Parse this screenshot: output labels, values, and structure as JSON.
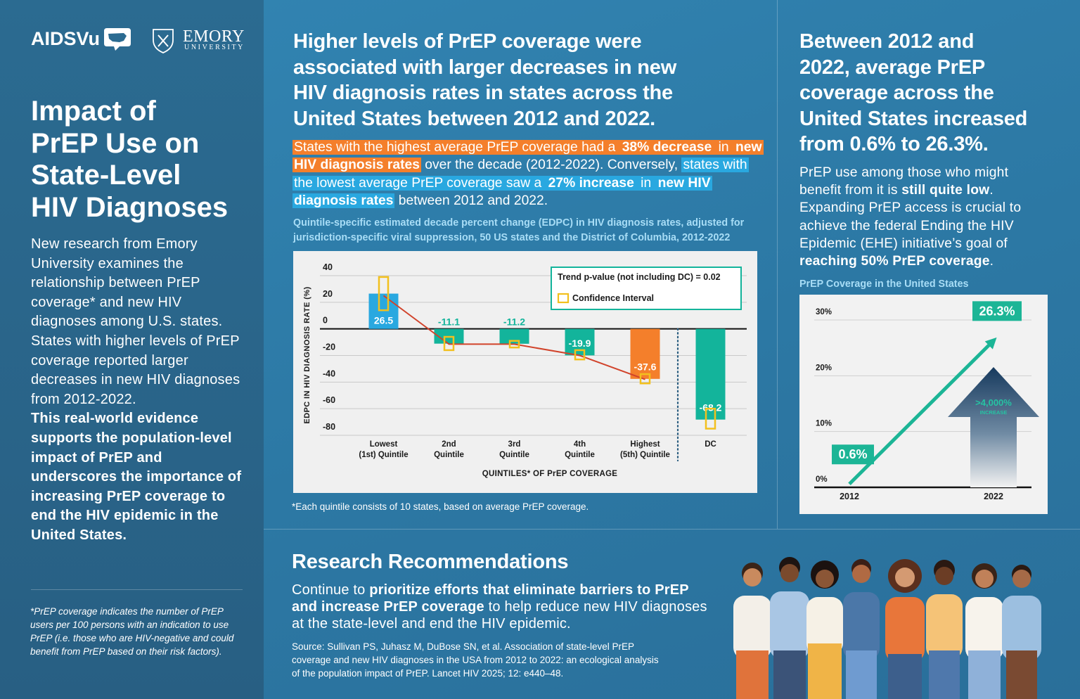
{
  "logos": {
    "aidsvu": "AIDSVu",
    "emory": "EMORY",
    "university": "UNIVERSITY"
  },
  "left": {
    "title": [
      "Impact of",
      "PrEP Use on",
      "State-Level",
      "HIV Diagnoses"
    ],
    "body": "New research from Emory University examines the relationship between PrEP coverage* and new HIV diagnoses among U.S. states. States with higher levels of PrEP coverage reported larger decreases in new HIV diagnoses from 2012-2022.",
    "body_bold": "This real-world evidence supports the population-level impact of PrEP and underscores the importance of increasing PrEP coverage to end the HIV epidemic in the United States.",
    "footnote": "*PrEP coverage indicates the number of PrEP users per 100 persons with an indication to use PrEP (i.e. those who are HIV-negative and could benefit from PrEP based on their risk factors)."
  },
  "middle": {
    "headline": [
      "Higher levels of PrEP coverage were",
      "associated with larger decreases in new",
      "HIV diagnosis rates in states across the",
      "United States between 2012 and 2022."
    ],
    "summary": [
      "States with the highest average PrEP coverage had a ",
      "38% decrease",
      " in ",
      "new HIV diagnosis rates",
      " over the decade (2012-2022). Conversely, ",
      "states with the lowest average PrEP coverage saw a ",
      "27% increase",
      " in ",
      "new HIV diagnosis rates",
      " between 2012 and 2022."
    ]
  },
  "right": {
    "headline": [
      "Between 2012 and",
      "2022, average PrEP",
      "coverage across the",
      "United States increased",
      "from 0.6% to 26.3%."
    ],
    "paragraph": [
      "PrEP use among those who might benefit from it is ",
      "still quite low",
      ". Expanding PrEP access is crucial to achieve the federal Ending the HIV Epidemic (EHE) initiative’s goal of ",
      "reaching 50% PrEP coverage",
      "."
    ]
  },
  "recommendations": {
    "title": "Research Recommendations",
    "paragraph": [
      "Continue to ",
      "prioritize efforts that eliminate barriers to PrEP and increase PrEP coverage",
      " to help reduce new HIV diagnoses at the state-level and end the HIV epidemic."
    ],
    "source": "Source: Sullivan PS, Juhasz M, DuBose SN, et al. Association of state-level PrEP coverage and new HIV diagnoses in the USA from 2012 to 2022: an ecological analysis of the population impact of PrEP. Lancet HIV 2025; 12: e440–48."
  },
  "chart_data": [
    {
      "type": "bar",
      "title": "Quintile-specific estimated decade percent change (EDPC) in HIV diagnosis rates, adjusted for jurisdiction-specific viral suppression, 50 US states and the District of Columbia, 2012-2022",
      "categories": [
        "Lowest\n(1st) Quintile",
        "2nd\nQuintile",
        "3rd\nQuintile",
        "4th\nQuintile",
        "Highest\n(5th) Quintile",
        "DC"
      ],
      "values": [
        26.5,
        -11.1,
        -11.2,
        -19.9,
        -37.6,
        -68.2
      ],
      "colors": [
        "#29a8e0",
        "#13b49b",
        "#13b49b",
        "#13b49b",
        "#f47f2b",
        "#13b49b"
      ],
      "ci": [
        [
          14,
          39
        ],
        [
          -16,
          -6
        ],
        [
          -14,
          -9
        ],
        [
          -23,
          -16
        ],
        [
          -41,
          -34
        ],
        [
          -75,
          -60
        ]
      ],
      "ci_color": "#f2c01e",
      "ci_label": "Confidence Interval",
      "trend": {
        "name": "Trend p-value (not including DC) = 0.02",
        "color": "#d1432b",
        "values": [
          25,
          -11.5,
          -11.5,
          -20,
          -38,
          null
        ]
      },
      "ylim": [
        -80,
        40
      ],
      "yticks": [
        40,
        20,
        0,
        -20,
        -40,
        -60,
        -80
      ],
      "grid": true,
      "xlabel": "QUINTILES* OF PrEP COVERAGE",
      "ylabel": "EDPC IN HIV DIAGNOSIS RATE (%)",
      "note": "*Each quintile consists of 10 states, based on average PrEP coverage."
    },
    {
      "type": "line",
      "title": "PrEP Coverage in the United States",
      "categories": [
        "2012",
        "2022"
      ],
      "values": [
        0.6,
        26.3
      ],
      "value_labels": [
        "0.6%",
        "26.3%"
      ],
      "color": "#1cb596",
      "ylim": [
        0,
        30
      ],
      "yticks": [
        {
          "value": 0,
          "label": "0%"
        },
        {
          "value": 10,
          "label": "10%"
        },
        {
          "value": 20,
          "label": "20%"
        },
        {
          "value": 30,
          "label": "30%"
        }
      ],
      "grid": true,
      "annotation": [
        ">4,000%",
        "INCREASE"
      ]
    }
  ]
}
